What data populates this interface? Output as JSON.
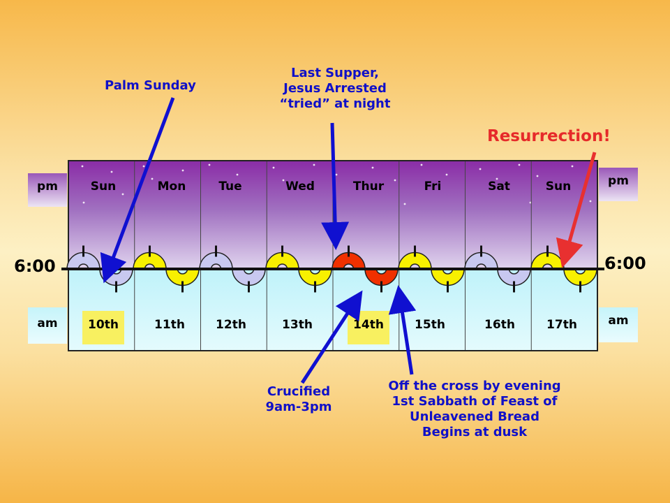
{
  "days": [
    {
      "name": "Sun",
      "date": "10th",
      "highlight": true,
      "arc": "lav"
    },
    {
      "name": "Mon",
      "date": "11th",
      "highlight": false,
      "arc": "yel"
    },
    {
      "name": "Tue",
      "date": "12th",
      "highlight": false,
      "arc": "lav"
    },
    {
      "name": "Wed",
      "date": "13th",
      "highlight": false,
      "arc": "yel"
    },
    {
      "name": "Thur",
      "date": "14th",
      "highlight": true,
      "arc": "red"
    },
    {
      "name": "Fri",
      "date": "15th",
      "highlight": false,
      "arc": "yel"
    },
    {
      "name": "Sat",
      "date": "16th",
      "highlight": false,
      "arc": "lav"
    },
    {
      "name": "Sun",
      "date": "17th",
      "highlight": false,
      "arc": "yel"
    }
  ],
  "side_labels": {
    "pm": "pm",
    "am": "am",
    "time_left": "6:00",
    "time_right": "6:00"
  },
  "annotations": {
    "palm_sunday": "Palm Sunday",
    "last_supper": [
      "Last Supper,",
      "Jesus Arrested",
      "“tried” at night"
    ],
    "resurrection": "Resurrection!",
    "crucified": [
      "Crucified",
      "9am-3pm"
    ],
    "off_cross": [
      "Off the cross by evening",
      "1st Sabbath of Feast of",
      "Unleavened Bread",
      "Begins at dusk"
    ]
  },
  "colors": {
    "pm_band": "#8a3aa6",
    "am_band": "#c8f4fa",
    "lavender": "#c8c8f0",
    "yellow": "#f8f000",
    "red": "#f03000",
    "arrow_blue": "#1010d0",
    "arrow_red": "#e83030",
    "highlight": "#f8f060"
  }
}
